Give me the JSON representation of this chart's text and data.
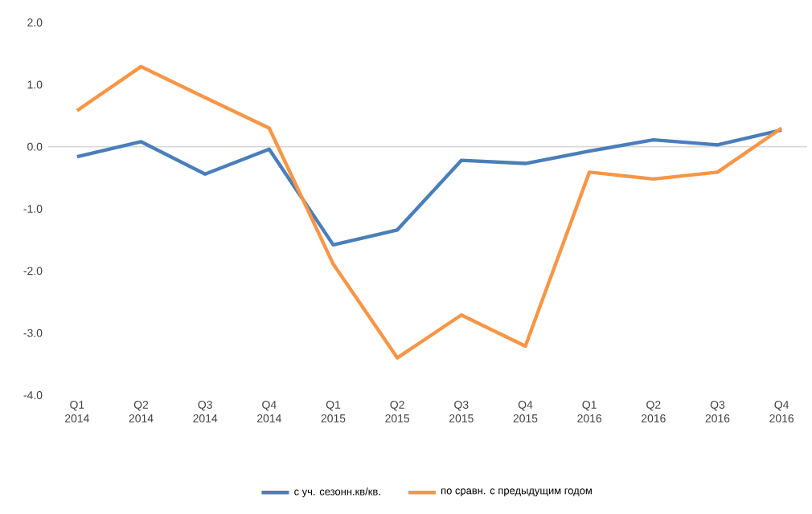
{
  "chart_data": {
    "type": "line",
    "categories": [
      "Q1 2014",
      "Q2 2014",
      "Q3 2014",
      "Q4 2014",
      "Q1 2015",
      "Q2 2015",
      "Q3 2015",
      "Q4 2015",
      "Q1 2016",
      "Q2 2016",
      "Q3 2016",
      "Q4 2016"
    ],
    "series": [
      {
        "name": "с уч. сезонн.кв/кв.",
        "color": "#4a7ebb",
        "values": [
          -0.16,
          0.08,
          -0.44,
          -0.04,
          -1.58,
          -1.34,
          -0.22,
          -0.27,
          -0.07,
          0.11,
          0.03,
          0.27
        ]
      },
      {
        "name": "по сравн. с предыдущим годом",
        "color": "#f79646",
        "values": [
          0.58,
          1.29,
          0.79,
          0.3,
          -1.89,
          -3.4,
          -2.71,
          -3.21,
          -0.41,
          -0.52,
          -0.41,
          0.3
        ]
      }
    ],
    "ylim": [
      -4,
      2
    ],
    "yticks": [
      {
        "value": 2,
        "label": "2.0"
      },
      {
        "value": 1,
        "label": "1.0"
      },
      {
        "value": 0,
        "label": "0.0"
      },
      {
        "value": -1,
        "label": "-1.0"
      },
      {
        "value": -2,
        "label": "-2.0"
      },
      {
        "value": -3,
        "label": "-3.0"
      },
      {
        "value": -4,
        "label": "-4.0"
      }
    ],
    "ref_lines": [
      {
        "axis": "y",
        "value": 0,
        "color": "#d9d9d9"
      }
    ],
    "legend": "bottom",
    "marker": "none",
    "line_style": "solid"
  }
}
